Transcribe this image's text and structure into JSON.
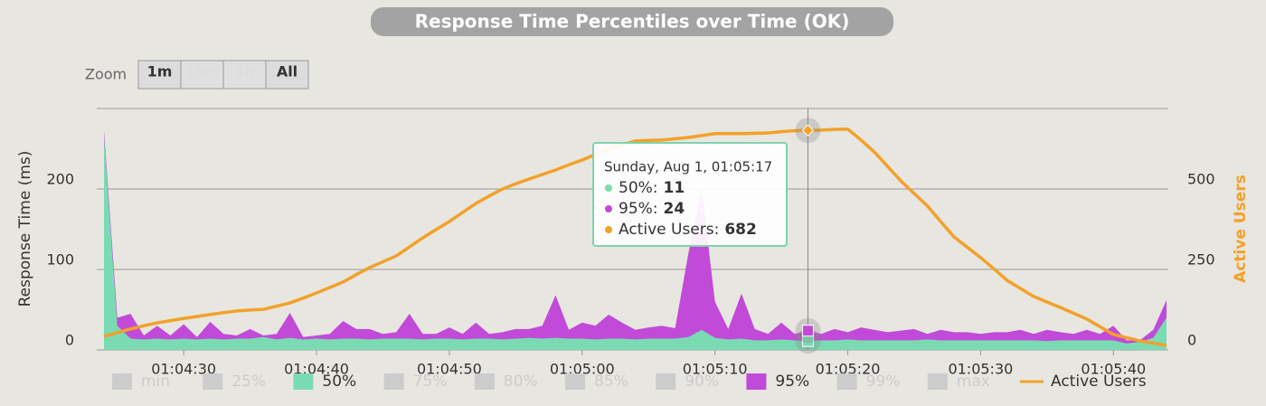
{
  "chart_data": {
    "type": "area",
    "title": "Response Time Percentiles over Time (OK)",
    "y_label": "Response Time (ms)",
    "y2_label": "Active Users",
    "zoom": {
      "label": "Zoom",
      "buttons": [
        {
          "text": "1m",
          "enabled": true
        },
        {
          "text": "10m",
          "enabled": false
        },
        {
          "text": "1h",
          "enabled": false
        },
        {
          "text": "All",
          "enabled": true
        }
      ]
    },
    "x": [
      "01:04:24",
      "01:04:25",
      "01:04:26",
      "01:04:27",
      "01:04:28",
      "01:04:29",
      "01:04:30",
      "01:04:31",
      "01:04:32",
      "01:04:33",
      "01:04:34",
      "01:04:35",
      "01:04:36",
      "01:04:37",
      "01:04:38",
      "01:04:39",
      "01:04:40",
      "01:04:41",
      "01:04:42",
      "01:04:43",
      "01:04:44",
      "01:04:45",
      "01:04:46",
      "01:04:47",
      "01:04:48",
      "01:04:49",
      "01:04:50",
      "01:04:51",
      "01:04:52",
      "01:04:53",
      "01:04:54",
      "01:04:55",
      "01:04:56",
      "01:04:57",
      "01:04:58",
      "01:04:59",
      "01:05:00",
      "01:05:01",
      "01:05:02",
      "01:05:03",
      "01:05:04",
      "01:05:05",
      "01:05:06",
      "01:05:07",
      "01:05:08",
      "01:05:09",
      "01:05:10",
      "01:05:11",
      "01:05:12",
      "01:05:13",
      "01:05:14",
      "01:05:15",
      "01:05:16",
      "01:05:17",
      "01:05:18",
      "01:05:19",
      "01:05:20",
      "01:05:21",
      "01:05:22",
      "01:05:23",
      "01:05:24",
      "01:05:25",
      "01:05:26",
      "01:05:27",
      "01:05:28",
      "01:05:29",
      "01:05:30",
      "01:05:31",
      "01:05:32",
      "01:05:33",
      "01:05:34",
      "01:05:35",
      "01:05:36",
      "01:05:37",
      "01:05:38",
      "01:05:39",
      "01:05:40",
      "01:05:41",
      "01:05:42",
      "01:05:43",
      "01:05:44"
    ],
    "xlim": [
      "01:04:24",
      "01:05:44"
    ],
    "xticks": [
      "01:04:30",
      "01:04:40",
      "01:04:50",
      "01:05:00",
      "01:05:10",
      "01:05:20",
      "01:05:30",
      "01:05:40"
    ],
    "ylim": [
      0,
      300
    ],
    "yticks": [
      0,
      100,
      200
    ],
    "y2lim": [
      0,
      750
    ],
    "y2ticks": [
      0,
      250,
      500
    ],
    "grid": true,
    "series": [
      {
        "name": "min",
        "color": "#cccccc",
        "visible": false
      },
      {
        "name": "25%",
        "color": "#cccccc",
        "visible": false
      },
      {
        "name": "50%",
        "color": "#7adbb3",
        "visible": true,
        "style": "area",
        "values": [
          265,
          30,
          14,
          13,
          14,
          13,
          14,
          13,
          14,
          13,
          14,
          14,
          16,
          13,
          15,
          13,
          14,
          13,
          14,
          14,
          13,
          14,
          14,
          14,
          13,
          14,
          14,
          13,
          14,
          14,
          13,
          14,
          15,
          14,
          15,
          14,
          14,
          13,
          14,
          14,
          13,
          14,
          14,
          14,
          16,
          25,
          15,
          13,
          14,
          12,
          12,
          13,
          12,
          11,
          12,
          12,
          13,
          12,
          12,
          12,
          12,
          12,
          13,
          12,
          12,
          12,
          12,
          12,
          12,
          12,
          12,
          11,
          12,
          12,
          12,
          12,
          12,
          8,
          10,
          15,
          40
        ]
      },
      {
        "name": "75%",
        "color": "#cccccc",
        "visible": false
      },
      {
        "name": "80%",
        "color": "#cccccc",
        "visible": false
      },
      {
        "name": "85%",
        "color": "#cccccc",
        "visible": false
      },
      {
        "name": "90%",
        "color": "#cccccc",
        "visible": false
      },
      {
        "name": "95%",
        "color": "#c24ad8",
        "visible": true,
        "style": "area",
        "values": [
          272,
          40,
          45,
          18,
          30,
          18,
          32,
          16,
          35,
          20,
          18,
          26,
          18,
          20,
          46,
          16,
          18,
          20,
          36,
          26,
          26,
          20,
          22,
          45,
          20,
          20,
          28,
          20,
          34,
          20,
          22,
          26,
          26,
          30,
          68,
          25,
          34,
          30,
          44,
          34,
          25,
          28,
          30,
          27,
          120,
          200,
          60,
          26,
          70,
          26,
          20,
          34,
          20,
          24,
          20,
          26,
          22,
          28,
          25,
          22,
          24,
          26,
          20,
          25,
          22,
          22,
          20,
          22,
          22,
          25,
          20,
          25,
          22,
          20,
          25,
          20,
          30,
          12,
          12,
          25,
          62
        ]
      },
      {
        "name": "99%",
        "color": "#cccccc",
        "visible": false
      },
      {
        "name": "max",
        "color": "#cccccc",
        "visible": false
      },
      {
        "name": "Active Users",
        "color": "#f2a12a",
        "visible": true,
        "style": "line",
        "axis": "y2",
        "values": [
          42,
          54,
          65,
          75,
          84,
          91,
          98,
          104,
          110,
          116,
          121,
          124,
          126,
          136,
          146,
          161,
          177,
          194,
          211,
          234,
          256,
          274,
          292,
          320,
          348,
          374,
          399,
          427,
          455,
          478,
          500,
          516,
          531,
          545,
          559,
          575,
          590,
          607,
          624,
          637,
          649,
          651,
          652,
          656,
          660,
          666,
          672,
          672,
          672,
          673,
          674,
          678,
          681,
          682,
          683,
          685,
          686,
          652,
          615,
          570,
          525,
          486,
          447,
          399,
          351,
          319,
          287,
          252,
          216,
          191,
          166,
          149,
          132,
          114,
          96,
          72,
          48,
          38,
          28,
          21,
          14
        ]
      }
    ],
    "tooltip": {
      "title": "Sunday, Aug 1, 01:05:17"
    }
  }
}
